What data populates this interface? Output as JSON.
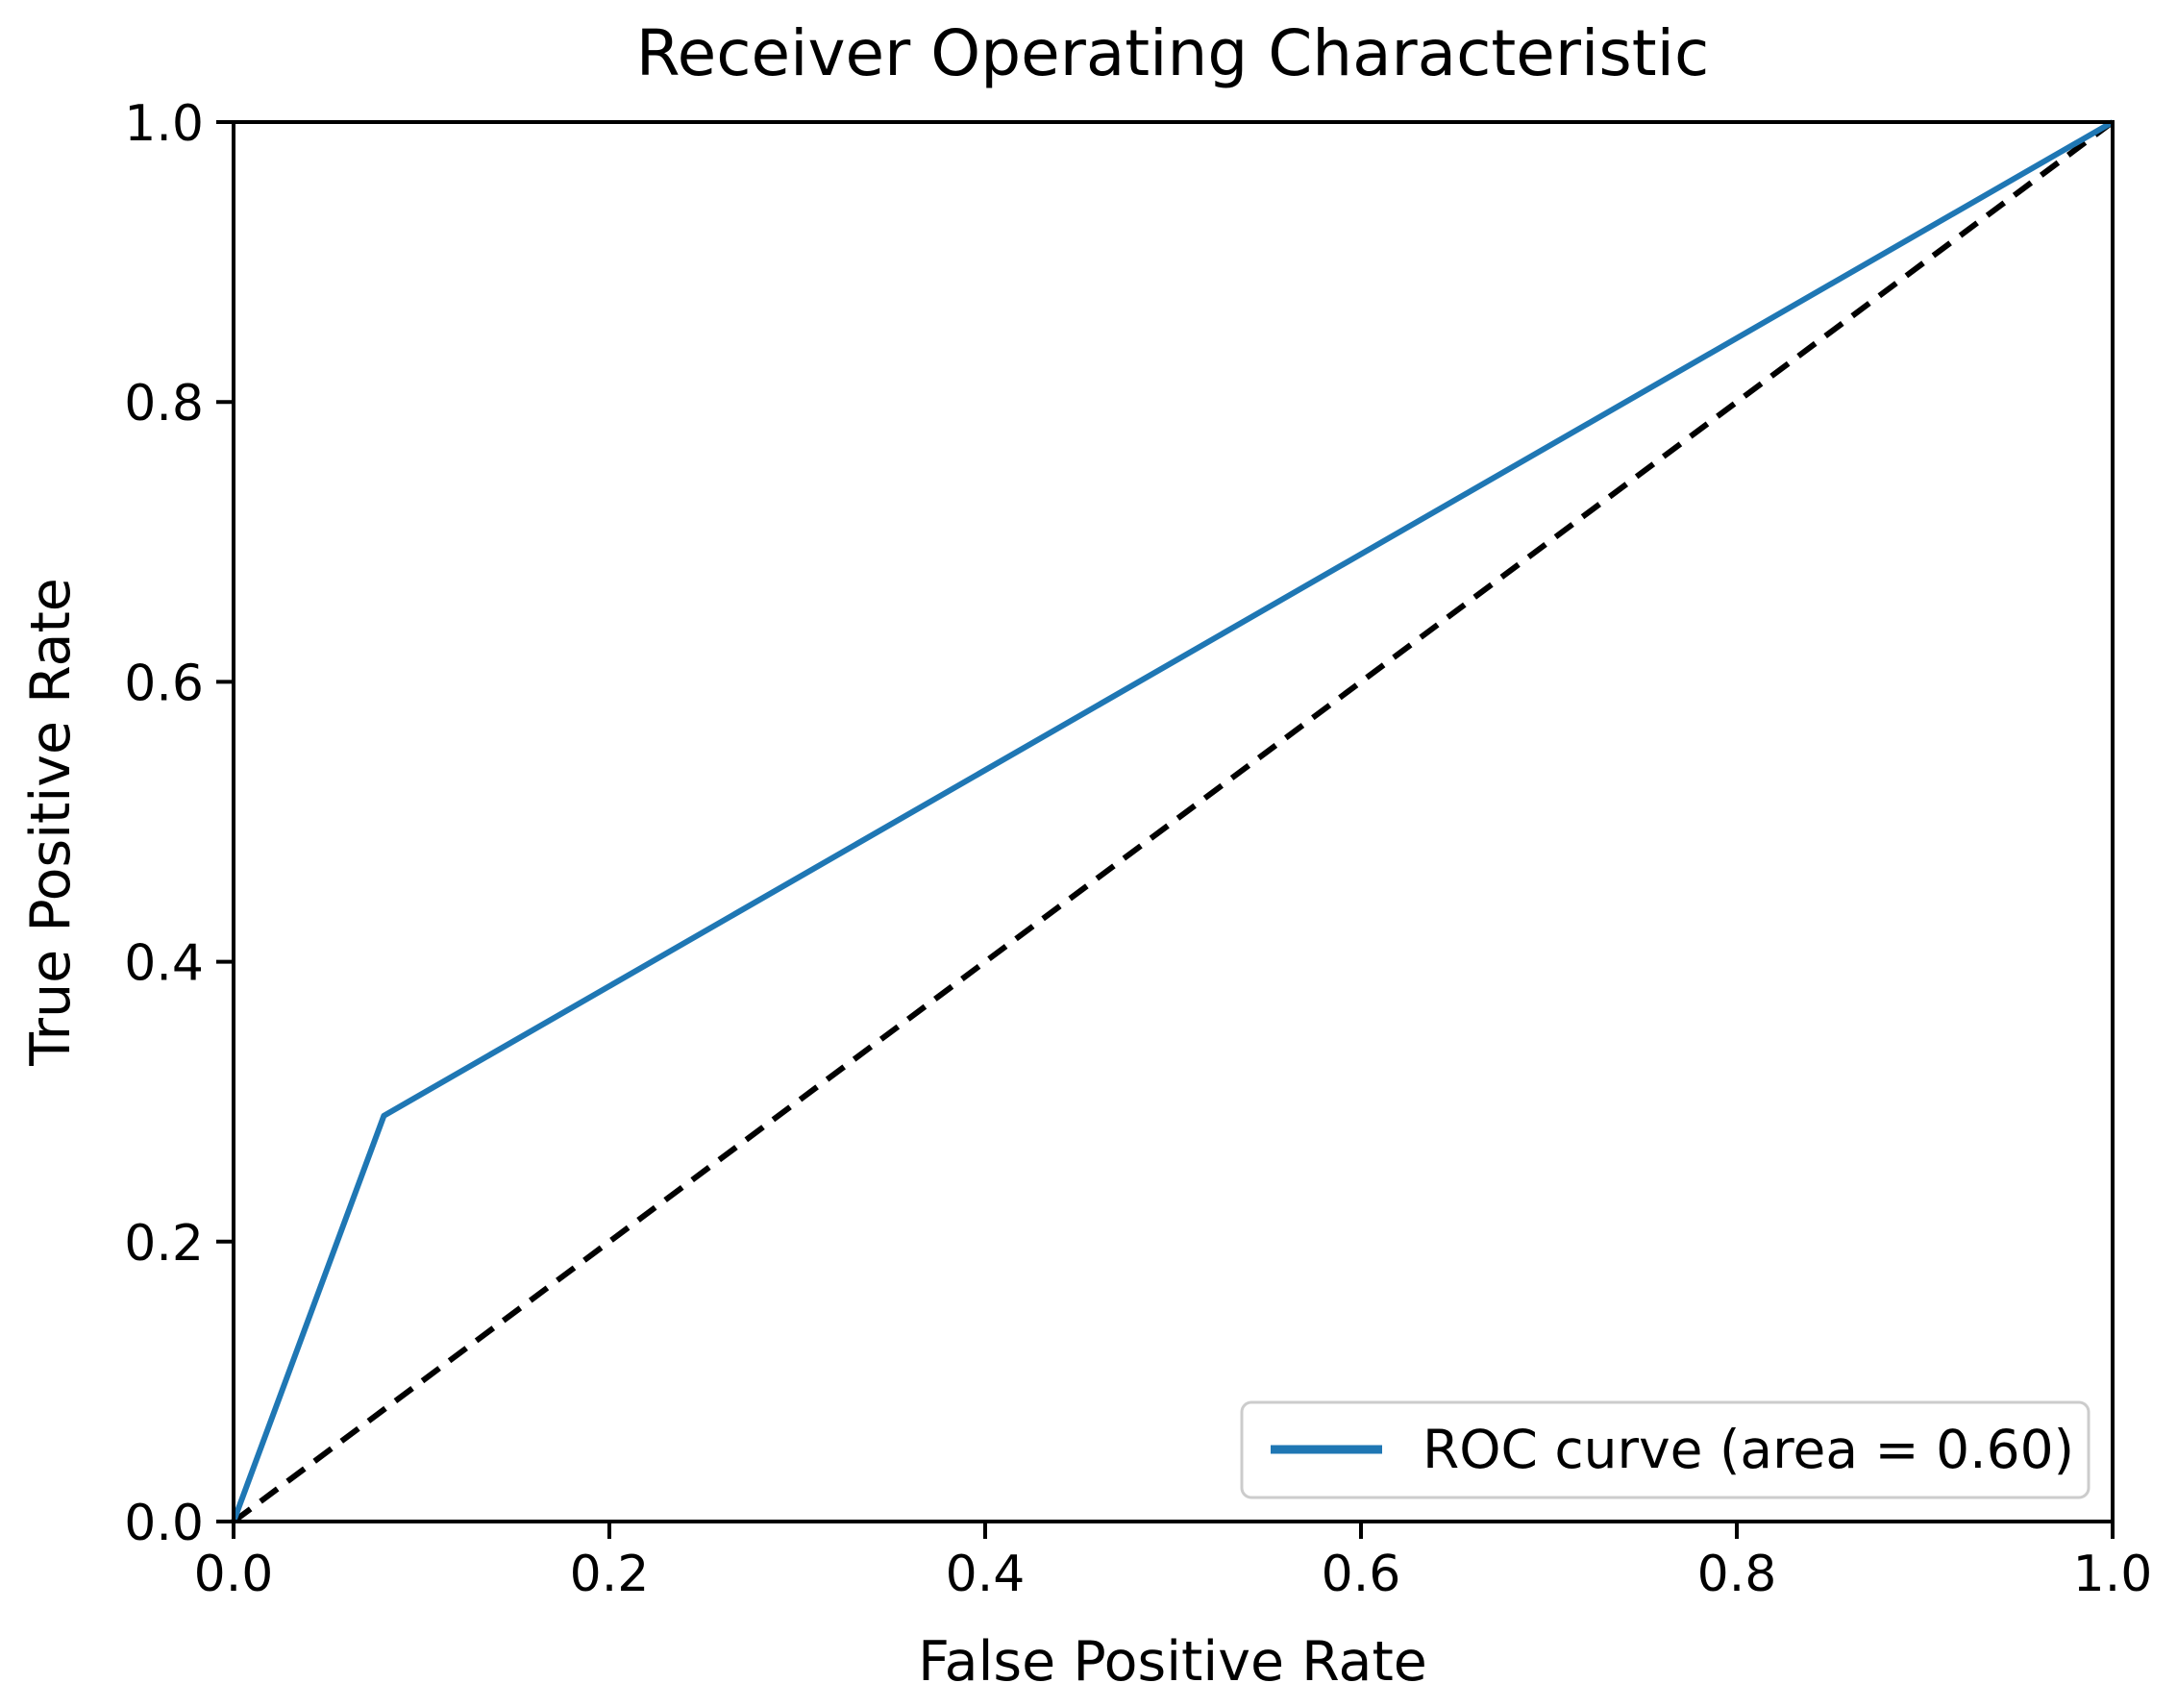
{
  "figure": {
    "background": "#ffffff",
    "text_color": "#000000",
    "legend_border_color": "#cccccc"
  },
  "chart_data": {
    "type": "line",
    "title": "Receiver Operating Characteristic",
    "xlabel": "False Positive Rate",
    "ylabel": "True Positive Rate",
    "xlim": [
      0.0,
      1.0
    ],
    "ylim": [
      0.0,
      1.0
    ],
    "xticks": [
      0.0,
      0.2,
      0.4,
      0.6,
      0.8,
      1.0
    ],
    "yticks": [
      0.0,
      0.2,
      0.4,
      0.6,
      0.8,
      1.0
    ],
    "xtick_labels": [
      "0.0",
      "0.2",
      "0.4",
      "0.6",
      "0.8",
      "1.0"
    ],
    "ytick_labels": [
      "0.0",
      "0.2",
      "0.4",
      "0.6",
      "0.8",
      "1.0"
    ],
    "grid": false,
    "auc": 0.6,
    "legend": {
      "position": "lower right",
      "entries": [
        {
          "label": "ROC curve (area = 0.60)",
          "color": "#1f77b4",
          "style": "solid"
        }
      ]
    },
    "series": [
      {
        "name": "chance-diagonal",
        "color": "#000000",
        "style": "dashed",
        "x": [
          0.0,
          1.0
        ],
        "y": [
          0.0,
          1.0
        ]
      },
      {
        "name": "ROC curve (area = 0.60)",
        "color": "#1f77b4",
        "style": "solid",
        "x": [
          0.0,
          0.08,
          1.0
        ],
        "y": [
          0.0,
          0.29,
          1.0
        ]
      }
    ]
  }
}
